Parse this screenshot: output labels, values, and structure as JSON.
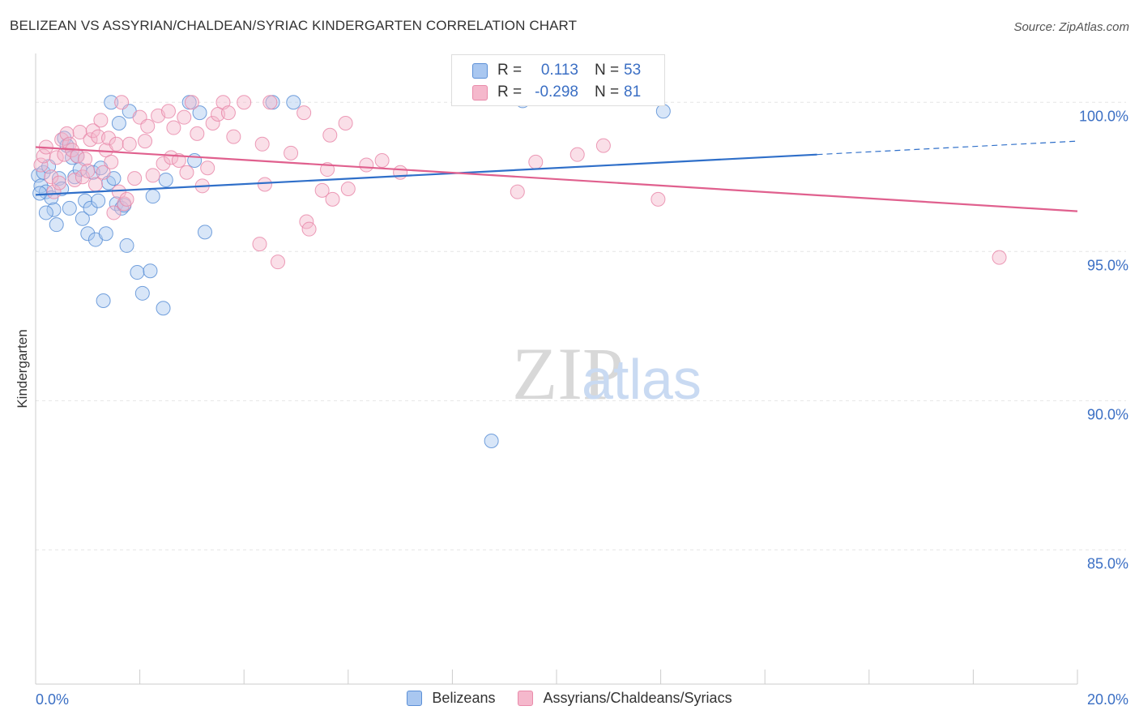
{
  "header": {
    "title": "BELIZEAN VS ASSYRIAN/CHALDEAN/SYRIAC KINDERGARTEN CORRELATION CHART",
    "source": "Source: ZipAtlas.com"
  },
  "watermark": {
    "zip": "ZIP",
    "atlas": "atlas"
  },
  "colors": {
    "blue_fill": "#a9c7f0",
    "blue_stroke": "#5b8fd6",
    "blue_line": "#2f6fc9",
    "pink_fill": "#f5b8cc",
    "pink_stroke": "#e98aaa",
    "pink_line": "#e0608e",
    "tick_label": "#3b6fc4",
    "grid": "#e6e6e6"
  },
  "legend_top": {
    "rows": [
      {
        "series": "Belizeans",
        "r_label": "R =",
        "r_value": "0.113",
        "n_label": "N =",
        "n_value": "53"
      },
      {
        "series": "Assyrians/Chaldeans/Syriacs",
        "r_label": "R =",
        "r_value": "-0.298",
        "n_label": "N =",
        "n_value": "81"
      }
    ]
  },
  "legend_bottom": {
    "items": [
      "Belizeans",
      "Assyrians/Chaldeans/Syriacs"
    ]
  },
  "chart_data": {
    "type": "scatter",
    "title": "BELIZEAN VS ASSYRIAN/CHALDEAN/SYRIAC KINDERGARTEN CORRELATION CHART",
    "xlabel": "",
    "ylabel": "Kindergarten",
    "xlim": [
      0,
      20
    ],
    "ylim": [
      80.5,
      101.8
    ],
    "x_tick_labels": [
      "0.0%",
      "20.0%"
    ],
    "y_ticks": [
      100,
      95,
      90,
      85
    ],
    "y_tick_labels": [
      "100.0%",
      "95.0%",
      "90.0%",
      "85.0%"
    ],
    "grid": true,
    "legend_position": "top-center",
    "series": [
      {
        "name": "Belizeans",
        "R": 0.113,
        "N": 53,
        "trend": {
          "x0": 0,
          "y0": 96.9,
          "x1": 15.0,
          "y1": 98.25,
          "dash_to_x": 20.0,
          "dash_to_y": 98.7
        },
        "points": [
          [
            0.05,
            97.55
          ],
          [
            0.1,
            97.2
          ],
          [
            0.15,
            97.65
          ],
          [
            0.2,
            97.0
          ],
          [
            0.25,
            97.85
          ],
          [
            0.3,
            96.8
          ],
          [
            0.35,
            96.4
          ],
          [
            0.4,
            95.9
          ],
          [
            0.45,
            97.45
          ],
          [
            0.5,
            97.1
          ],
          [
            0.55,
            98.8
          ],
          [
            0.6,
            98.55
          ],
          [
            0.65,
            96.45
          ],
          [
            0.7,
            98.15
          ],
          [
            0.75,
            97.5
          ],
          [
            0.8,
            98.2
          ],
          [
            0.85,
            97.75
          ],
          [
            0.9,
            96.1
          ],
          [
            0.95,
            96.7
          ],
          [
            1.0,
            95.6
          ],
          [
            1.05,
            96.45
          ],
          [
            1.1,
            97.65
          ],
          [
            1.15,
            95.4
          ],
          [
            1.2,
            96.7
          ],
          [
            1.25,
            97.8
          ],
          [
            1.3,
            93.35
          ],
          [
            1.35,
            95.6
          ],
          [
            1.4,
            97.3
          ],
          [
            1.45,
            100.0
          ],
          [
            1.5,
            97.45
          ],
          [
            1.55,
            96.6
          ],
          [
            1.6,
            99.3
          ],
          [
            1.65,
            96.45
          ],
          [
            1.7,
            96.55
          ],
          [
            1.75,
            95.2
          ],
          [
            1.8,
            99.7
          ],
          [
            1.95,
            94.3
          ],
          [
            2.05,
            93.6
          ],
          [
            2.2,
            94.35
          ],
          [
            2.25,
            96.85
          ],
          [
            2.45,
            93.1
          ],
          [
            2.5,
            97.4
          ],
          [
            2.95,
            100.0
          ],
          [
            3.05,
            98.05
          ],
          [
            3.15,
            99.65
          ],
          [
            3.25,
            95.65
          ],
          [
            4.55,
            100.0
          ],
          [
            4.95,
            100.0
          ],
          [
            8.75,
            88.65
          ],
          [
            9.35,
            100.05
          ],
          [
            12.05,
            99.7
          ],
          [
            0.2,
            96.3
          ],
          [
            0.08,
            96.95
          ]
        ]
      },
      {
        "name": "Assyrians/Chaldeans/Syriacs",
        "R": -0.298,
        "N": 81,
        "trend": {
          "x0": 0,
          "y0": 98.5,
          "x1": 20.0,
          "y1": 96.35
        },
        "points": [
          [
            0.1,
            97.9
          ],
          [
            0.15,
            98.2
          ],
          [
            0.2,
            98.5
          ],
          [
            0.3,
            97.5
          ],
          [
            0.35,
            97.0
          ],
          [
            0.4,
            98.15
          ],
          [
            0.45,
            97.3
          ],
          [
            0.5,
            98.75
          ],
          [
            0.55,
            98.25
          ],
          [
            0.6,
            98.95
          ],
          [
            0.65,
            98.6
          ],
          [
            0.7,
            98.4
          ],
          [
            0.75,
            97.4
          ],
          [
            0.8,
            98.2
          ],
          [
            0.85,
            99.0
          ],
          [
            0.9,
            97.5
          ],
          [
            0.95,
            98.1
          ],
          [
            1.0,
            97.7
          ],
          [
            1.05,
            98.75
          ],
          [
            1.1,
            99.05
          ],
          [
            1.15,
            97.25
          ],
          [
            1.2,
            98.85
          ],
          [
            1.25,
            99.4
          ],
          [
            1.3,
            97.65
          ],
          [
            1.35,
            98.4
          ],
          [
            1.4,
            98.8
          ],
          [
            1.45,
            98.0
          ],
          [
            1.5,
            96.3
          ],
          [
            1.55,
            98.6
          ],
          [
            1.6,
            97.0
          ],
          [
            1.65,
            100.0
          ],
          [
            1.7,
            96.6
          ],
          [
            1.75,
            96.75
          ],
          [
            1.8,
            98.6
          ],
          [
            1.9,
            97.45
          ],
          [
            2.0,
            99.5
          ],
          [
            2.1,
            98.7
          ],
          [
            2.15,
            99.2
          ],
          [
            2.25,
            97.55
          ],
          [
            2.35,
            99.55
          ],
          [
            2.45,
            97.95
          ],
          [
            2.55,
            99.7
          ],
          [
            2.6,
            98.15
          ],
          [
            2.65,
            99.15
          ],
          [
            2.75,
            98.05
          ],
          [
            2.85,
            99.5
          ],
          [
            2.9,
            97.65
          ],
          [
            3.0,
            100.0
          ],
          [
            3.1,
            98.95
          ],
          [
            3.2,
            97.2
          ],
          [
            3.3,
            97.8
          ],
          [
            3.4,
            99.3
          ],
          [
            3.5,
            99.6
          ],
          [
            3.6,
            100.0
          ],
          [
            3.7,
            99.65
          ],
          [
            3.8,
            98.85
          ],
          [
            4.0,
            100.0
          ],
          [
            4.3,
            95.25
          ],
          [
            4.35,
            98.6
          ],
          [
            4.4,
            97.25
          ],
          [
            4.5,
            100.0
          ],
          [
            4.65,
            94.65
          ],
          [
            4.9,
            98.3
          ],
          [
            5.15,
            99.65
          ],
          [
            5.2,
            96.0
          ],
          [
            5.25,
            95.75
          ],
          [
            5.5,
            97.05
          ],
          [
            5.6,
            97.75
          ],
          [
            5.65,
            98.9
          ],
          [
            5.7,
            96.75
          ],
          [
            5.95,
            99.3
          ],
          [
            6.0,
            97.1
          ],
          [
            6.35,
            97.9
          ],
          [
            6.65,
            98.05
          ],
          [
            7.0,
            97.65
          ],
          [
            9.25,
            97.0
          ],
          [
            9.6,
            98.0
          ],
          [
            10.4,
            98.25
          ],
          [
            10.9,
            98.55
          ],
          [
            11.95,
            96.75
          ],
          [
            18.5,
            94.8
          ]
        ]
      }
    ]
  }
}
